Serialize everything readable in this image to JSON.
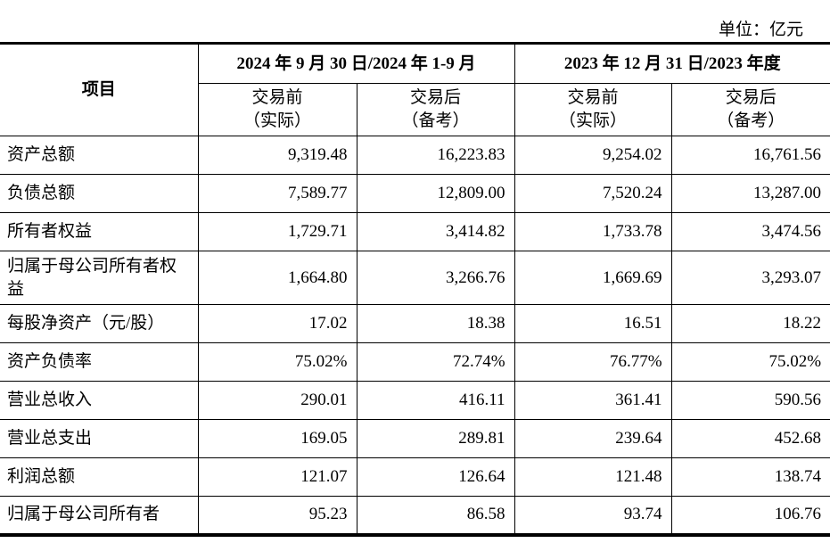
{
  "unit": "单位：亿元",
  "header": {
    "item": "项目",
    "periods": [
      "2024 年 9 月 30 日/2024 年 1-9 月",
      "2023 年 12 月 31 日/2023 年度"
    ],
    "subcols": [
      {
        "line1": "交易前",
        "line2": "（实际）"
      },
      {
        "line1": "交易后",
        "line2": "（备考）"
      },
      {
        "line1": "交易前",
        "line2": "（实际）"
      },
      {
        "line1": "交易后",
        "line2": "（备考）"
      }
    ]
  },
  "rows": [
    {
      "label": "资产总额",
      "values": [
        "9,319.48",
        "16,223.83",
        "9,254.02",
        "16,761.56"
      ]
    },
    {
      "label": "负债总额",
      "values": [
        "7,589.77",
        "12,809.00",
        "7,520.24",
        "13,287.00"
      ]
    },
    {
      "label": "所有者权益",
      "values": [
        "1,729.71",
        "3,414.82",
        "1,733.78",
        "3,474.56"
      ]
    },
    {
      "label": "归属于母公司所有者权益",
      "values": [
        "1,664.80",
        "3,266.76",
        "1,669.69",
        "3,293.07"
      ]
    },
    {
      "label": "每股净资产（元/股）",
      "values": [
        "17.02",
        "18.38",
        "16.51",
        "18.22"
      ]
    },
    {
      "label": "资产负债率",
      "values": [
        "75.02%",
        "72.74%",
        "76.77%",
        "75.02%"
      ]
    },
    {
      "label": "营业总收入",
      "values": [
        "290.01",
        "416.11",
        "361.41",
        "590.56"
      ]
    },
    {
      "label": "营业总支出",
      "values": [
        "169.05",
        "289.81",
        "239.64",
        "452.68"
      ]
    },
    {
      "label": "利润总额",
      "values": [
        "121.07",
        "126.64",
        "121.48",
        "138.74"
      ]
    },
    {
      "label": "归属于母公司所有者",
      "values": [
        "95.23",
        "86.58",
        "93.74",
        "106.76"
      ]
    }
  ]
}
